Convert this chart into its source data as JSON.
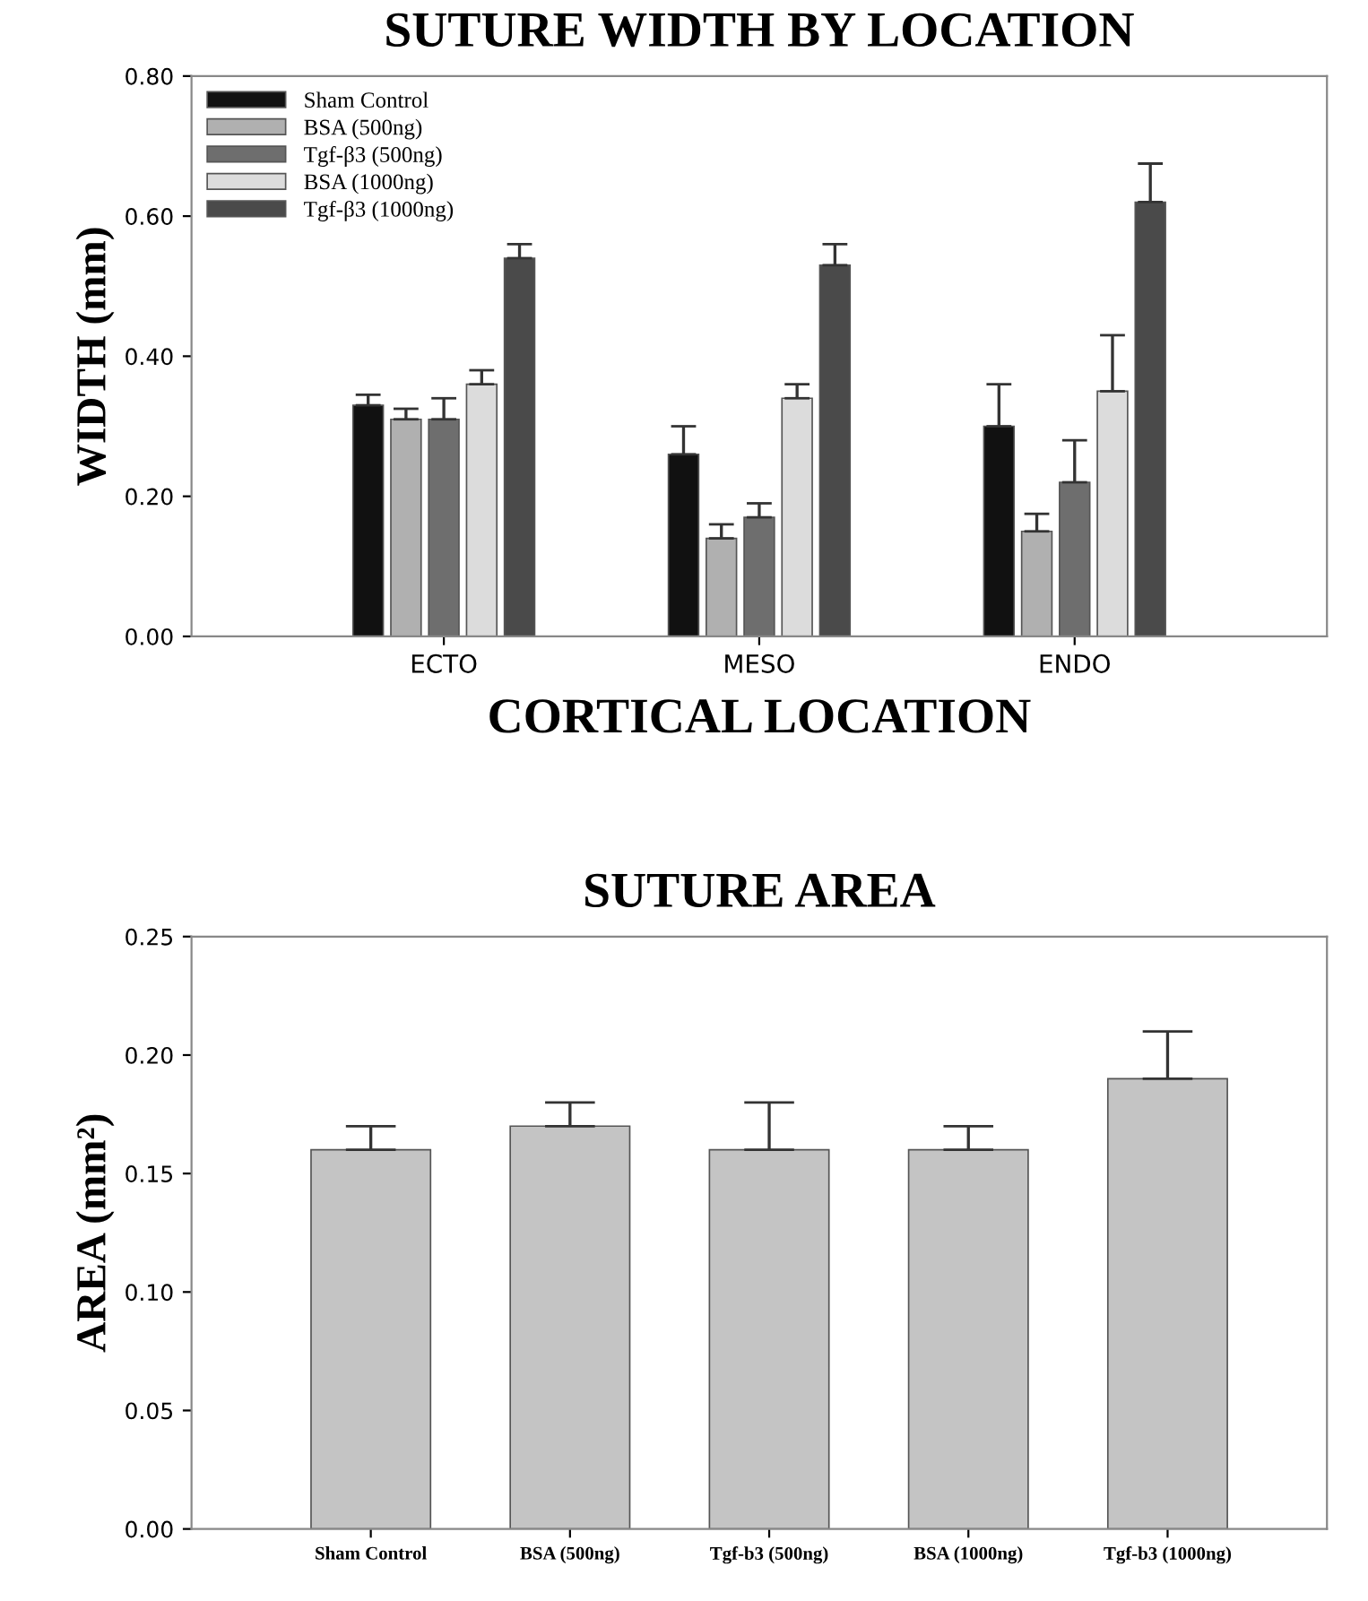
{
  "chart_data": [
    {
      "type": "bar",
      "title": "SUTURE WIDTH BY LOCATION",
      "xlabel": "CORTICAL LOCATION",
      "ylabel": "WIDTH (mm)",
      "categories": [
        "ECTO",
        "MESO",
        "ENDO"
      ],
      "series": [
        {
          "name": "Sham Control",
          "color": "#111111",
          "values": [
            0.33,
            0.26,
            0.3
          ],
          "errors": [
            [
              0.33,
              0.345
            ],
            [
              0.26,
              0.3
            ],
            [
              0.3,
              0.36
            ]
          ]
        },
        {
          "name": "BSA (500ng)",
          "color": "#b0b0b0",
          "values": [
            0.31,
            0.14,
            0.15
          ],
          "errors": [
            [
              0.31,
              0.325
            ],
            [
              0.14,
              0.16
            ],
            [
              0.15,
              0.175
            ]
          ]
        },
        {
          "name": "Tgf-β3 (500ng)",
          "color": "#6e6e6e",
          "values": [
            0.31,
            0.17,
            0.22
          ],
          "errors": [
            [
              0.31,
              0.34
            ],
            [
              0.17,
              0.19
            ],
            [
              0.22,
              0.28
            ]
          ]
        },
        {
          "name": "BSA (1000ng)",
          "color": "#dcdcdc",
          "values": [
            0.36,
            0.34,
            0.35
          ],
          "errors": [
            [
              0.36,
              0.38
            ],
            [
              0.34,
              0.36
            ],
            [
              0.35,
              0.43
            ]
          ]
        },
        {
          "name": "Tgf-β3 (1000ng)",
          "color": "#4a4a4a",
          "values": [
            0.54,
            0.53,
            0.62
          ],
          "errors": [
            [
              0.54,
              0.56
            ],
            [
              0.53,
              0.56
            ],
            [
              0.62,
              0.675
            ]
          ]
        }
      ],
      "ylim": [
        0,
        0.8
      ],
      "yticks": [
        {
          "value": 0,
          "label": "0.00"
        },
        {
          "value": 0.2,
          "label": "0.20"
        },
        {
          "value": 0.4,
          "label": "0.40"
        },
        {
          "value": 0.6,
          "label": "0.60"
        },
        {
          "value": 0.8,
          "label": "0.80"
        }
      ],
      "legend": "top left",
      "grid": false
    },
    {
      "type": "bar",
      "title": "SUTURE AREA",
      "ylabel": "AREA (mm²)",
      "categories": [
        "Sham Control",
        "BSA (500ng)",
        "Tgf-b3 (500ng)",
        "BSA (1000ng)",
        "Tgf-b3 (1000ng)"
      ],
      "series": [
        {
          "color": "#c4c4c4",
          "values": [
            0.16,
            0.17,
            0.16,
            0.16,
            0.19
          ],
          "errors": [
            [
              0.16,
              0.17
            ],
            [
              0.17,
              0.18
            ],
            [
              0.16,
              0.18
            ],
            [
              0.16,
              0.17
            ],
            [
              0.19,
              0.21
            ]
          ]
        }
      ],
      "ylim": [
        0,
        0.25
      ],
      "yticks": [
        {
          "value": 0,
          "label": "0.00"
        },
        {
          "value": 0.05,
          "label": "0.05"
        },
        {
          "value": 0.1,
          "label": "0.10"
        },
        {
          "value": 0.15,
          "label": "0.15"
        },
        {
          "value": 0.2,
          "label": "0.20"
        },
        {
          "value": 0.25,
          "label": "0.25"
        }
      ],
      "legend": false,
      "grid": false
    }
  ]
}
